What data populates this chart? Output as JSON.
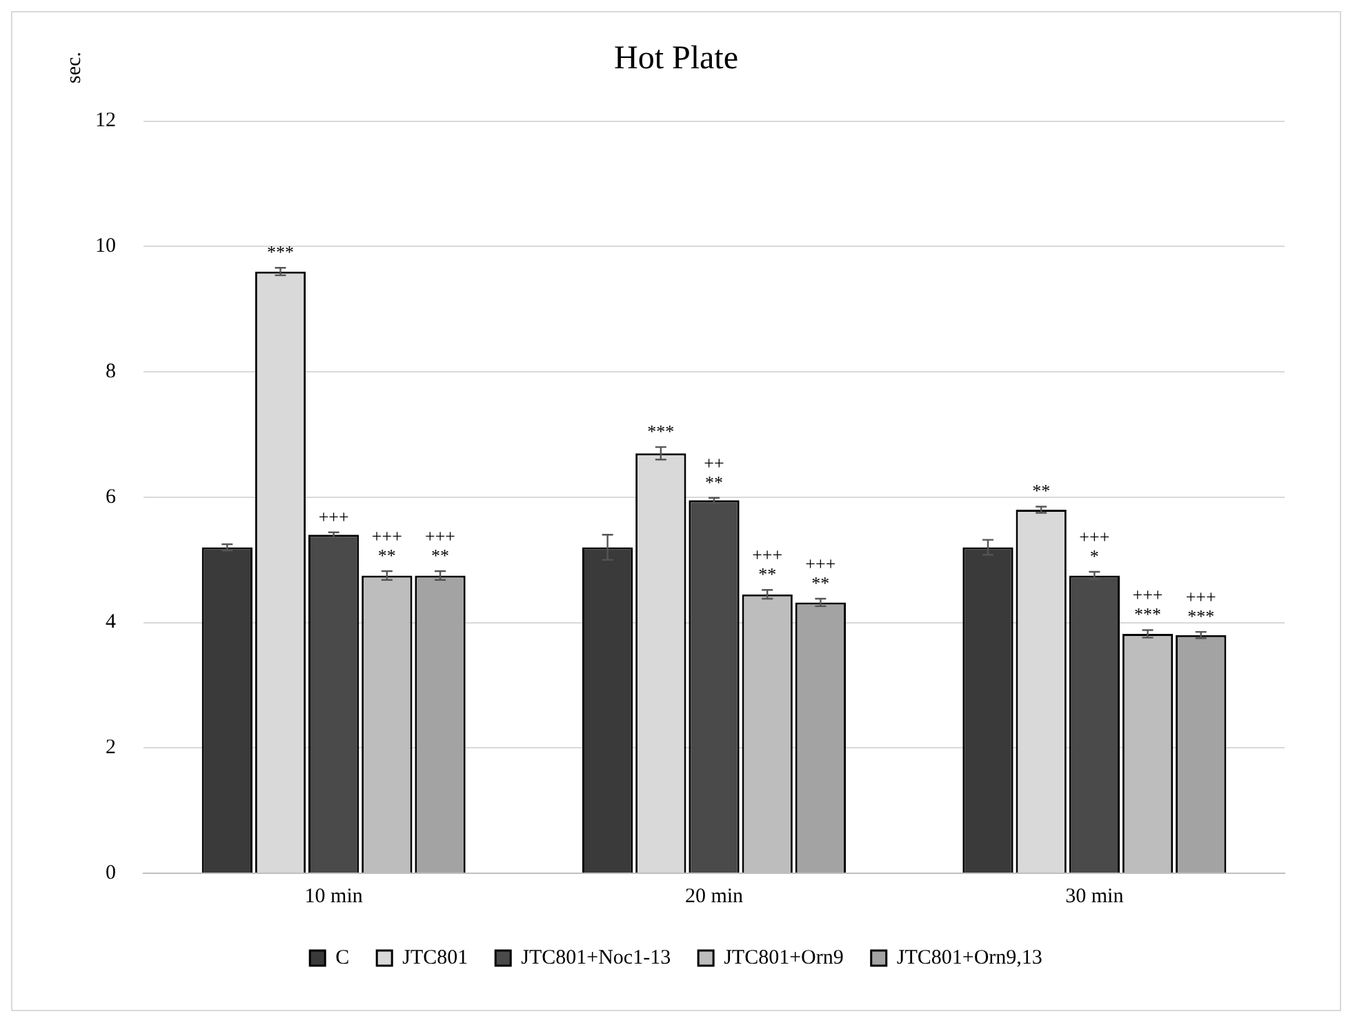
{
  "chart_data": {
    "type": "bar",
    "title": "Hot Plate",
    "ylabel": "sec.",
    "categories": [
      "10 min",
      "20 min",
      "30 min"
    ],
    "series": [
      {
        "name": "C",
        "color": "#3a3a3a",
        "values": [
          5.2,
          5.2,
          5.2
        ],
        "errors": [
          0.05,
          0.2,
          0.12
        ]
      },
      {
        "name": "JTC801",
        "color": "#d9d9d9",
        "values": [
          9.6,
          6.7,
          5.8
        ],
        "errors": [
          0.06,
          0.1,
          0.05
        ],
        "value_labels": [
          "***",
          "***",
          "**"
        ]
      },
      {
        "name": "JTC801+Noc1-13",
        "color": "#4a4a4a",
        "values": [
          5.4,
          5.95,
          4.75
        ],
        "errors": [
          0.04,
          0.04,
          0.06
        ],
        "value_labels": [
          "+++",
          "++\n**",
          "+++\n*"
        ]
      },
      {
        "name": "JTC801+Orn9",
        "color": "#bdbdbd",
        "values": [
          4.75,
          4.45,
          3.82
        ],
        "errors": [
          0.07,
          0.07,
          0.06
        ],
        "value_labels": [
          "+++\n**",
          "+++\n**",
          "+++\n***"
        ]
      },
      {
        "name": "JTC801+Orn9,13",
        "color": "#a3a3a3",
        "values": [
          4.75,
          4.32,
          3.8
        ],
        "errors": [
          0.07,
          0.06,
          0.05
        ],
        "value_labels": [
          "+++\n**",
          "+++\n**",
          "+++\n***"
        ]
      }
    ],
    "ylim": [
      0,
      12
    ],
    "yticks": [
      0,
      2,
      4,
      6,
      8,
      10,
      12
    ],
    "grid": "y",
    "legend": "bottom"
  }
}
